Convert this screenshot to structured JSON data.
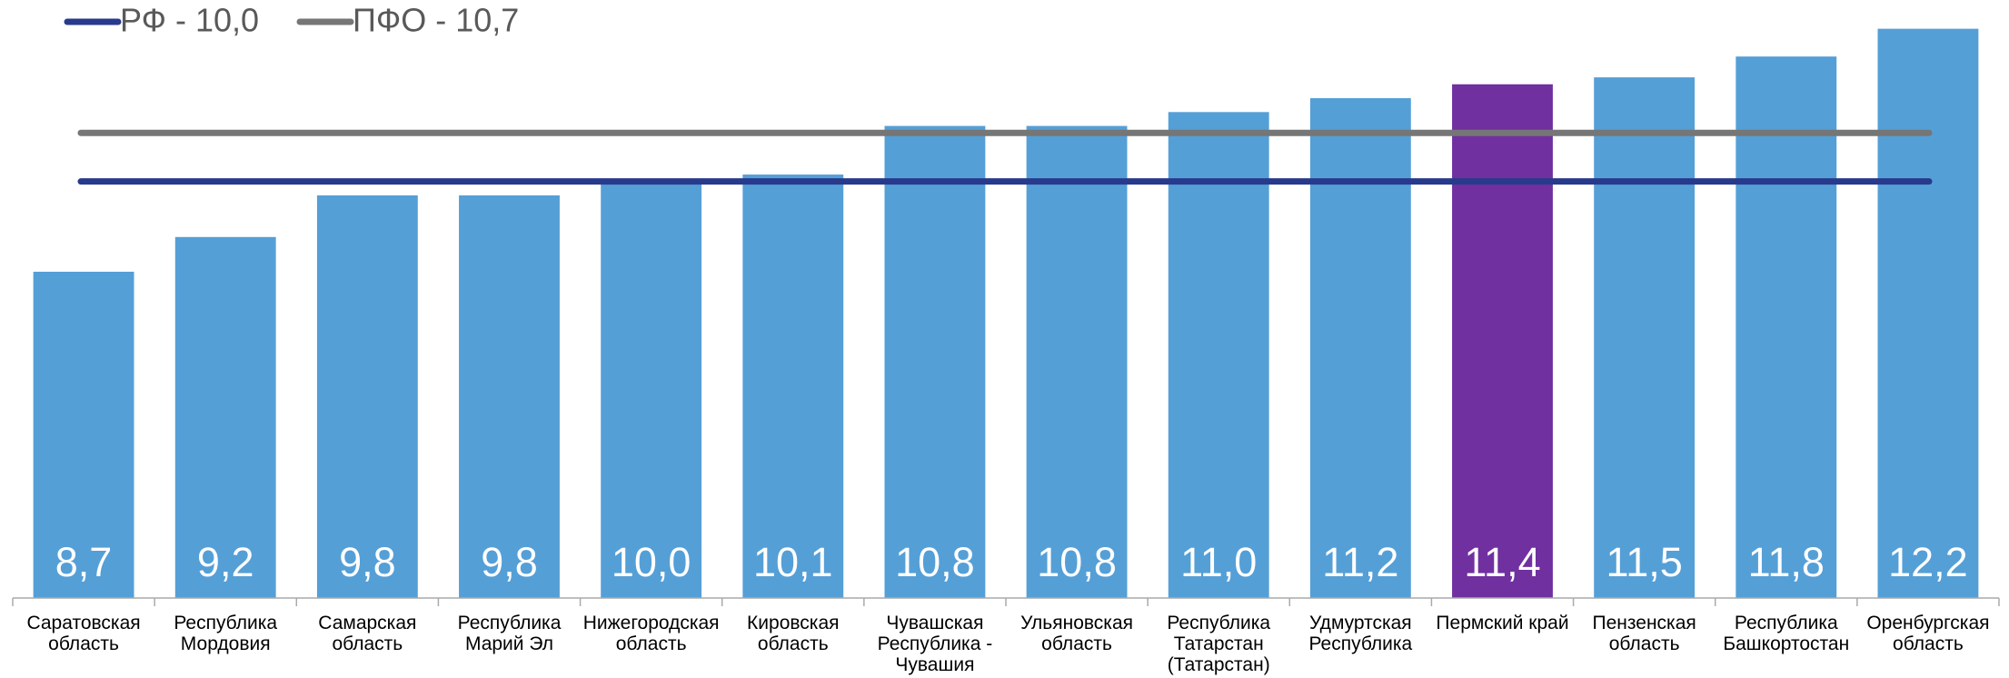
{
  "chart_data": {
    "type": "bar",
    "categories": [
      "Саратовская\nобласть",
      "Республика\nМордовия",
      "Самарская\nобласть",
      "Республика\nМарий Эл",
      "Нижегородская\nобласть",
      "Кировская\nобласть",
      "Чувашская\nРеспублика -\nЧувашия",
      "Ульяновская\nобласть",
      "Республика\nТатарстан\n(Татарстан)",
      "Удмуртская\nРеспублика",
      "Пермский край",
      "Пензенская\nобласть",
      "Республика\nБашкортостан",
      "Оренбургская\nобласть"
    ],
    "values": [
      8.7,
      9.2,
      9.8,
      9.8,
      10.0,
      10.1,
      10.8,
      10.8,
      11.0,
      11.2,
      11.4,
      11.5,
      11.8,
      12.2
    ],
    "value_labels": [
      "8,7",
      "9,2",
      "9,8",
      "9,8",
      "10,0",
      "10,1",
      "10,8",
      "10,8",
      "11,0",
      "11,2",
      "11,4",
      "11,5",
      "11,8",
      "12,2"
    ],
    "colors": [
      "#559fd7",
      "#559fd7",
      "#559fd7",
      "#559fd7",
      "#559fd7",
      "#559fd7",
      "#559fd7",
      "#559fd7",
      "#559fd7",
      "#559fd7",
      "#7030a0",
      "#559fd7",
      "#559fd7",
      "#559fd7"
    ],
    "ylim": [
      4,
      12.3
    ],
    "reference_lines": [
      {
        "name": "РФ - 10,0",
        "value": 10.0,
        "color": "#283a8c"
      },
      {
        "name": "ПФО - 10,7",
        "value": 10.7,
        "color": "#767676"
      }
    ]
  }
}
